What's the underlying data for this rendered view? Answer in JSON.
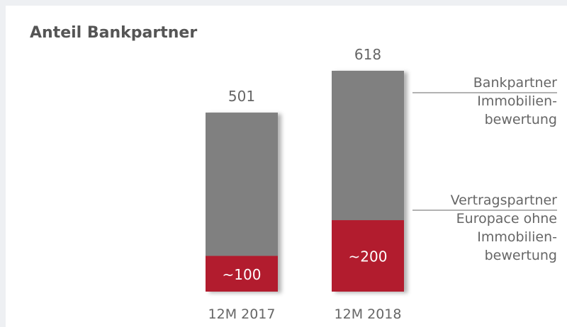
{
  "chart_data": {
    "type": "stacked-bar",
    "title": "Anteil Bankpartner",
    "categories": [
      "12M 2017",
      "12M 2018"
    ],
    "series": [
      {
        "name": "Vertragspartner\nEuropace ohne\nImmobilien-\nbewertung",
        "color": "#b21f2f",
        "values": [
          100,
          200
        ],
        "value_labels": [
          "~100",
          "~200"
        ]
      },
      {
        "name": "Bankpartner\nImmobilien-\nbewertung",
        "color": "#808080",
        "values": [
          401,
          418
        ]
      }
    ],
    "totals": [
      501,
      618
    ]
  }
}
